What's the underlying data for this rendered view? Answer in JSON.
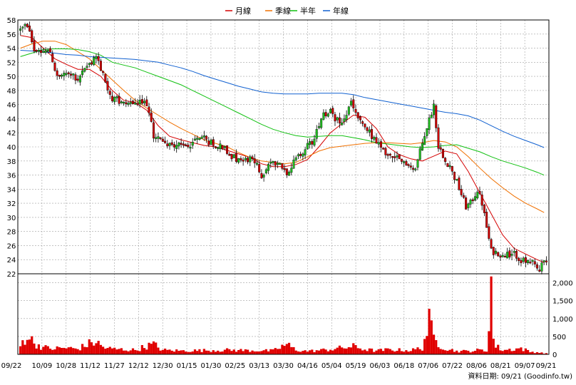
{
  "chart_data": {
    "type": "candlestick",
    "legend": [
      {
        "name": "月線",
        "color": "#d40000"
      },
      {
        "name": "季線",
        "color": "#f07000"
      },
      {
        "name": "半年",
        "color": "#10c010"
      },
      {
        "name": "年線",
        "color": "#1060d0"
      }
    ],
    "x_ticks": [
      "09/22",
      "10/09",
      "10/28",
      "11/12",
      "11/27",
      "12/12",
      "12/30",
      "01/15",
      "01/30",
      "02/25",
      "03/13",
      "03/30",
      "04/16",
      "05/04",
      "05/19",
      "06/03",
      "06/18",
      "07/06",
      "07/22",
      "08/06",
      "08/21",
      "09/07",
      "09/21"
    ],
    "price_axis": {
      "ylim": [
        22,
        58
      ],
      "ticks": [
        22,
        24,
        26,
        28,
        30,
        32,
        34,
        36,
        38,
        40,
        42,
        44,
        46,
        48,
        50,
        52,
        54,
        56,
        58
      ]
    },
    "volume_axis": {
      "ylim": [
        0,
        2250
      ],
      "tick_labels": [
        "0",
        "500",
        "1,000",
        "1,500",
        "2,000"
      ],
      "tick_values": [
        0,
        500,
        1000,
        1500,
        2000
      ]
    },
    "price_anchors": [
      [
        0,
        56.6
      ],
      [
        3,
        57.3
      ],
      [
        6,
        53.7
      ],
      [
        10,
        53.6
      ],
      [
        13,
        53.5
      ],
      [
        16,
        49.8
      ],
      [
        20,
        50.1
      ],
      [
        25,
        49.8
      ],
      [
        30,
        51.5
      ],
      [
        33,
        53.0
      ],
      [
        35,
        51.0
      ],
      [
        40,
        46.7
      ],
      [
        45,
        46.1
      ],
      [
        50,
        46.2
      ],
      [
        55,
        46.2
      ],
      [
        58,
        41.6
      ],
      [
        65,
        40.4
      ],
      [
        72,
        40.2
      ],
      [
        78,
        41.0
      ],
      [
        85,
        40.5
      ],
      [
        90,
        39.3
      ],
      [
        95,
        37.9
      ],
      [
        100,
        38.3
      ],
      [
        105,
        36.0
      ],
      [
        108,
        37.6
      ],
      [
        112,
        37.6
      ],
      [
        116,
        36.5
      ],
      [
        120,
        38.2
      ],
      [
        124,
        39.9
      ],
      [
        128,
        41.0
      ],
      [
        131,
        44.3
      ],
      [
        135,
        44.9
      ],
      [
        140,
        43.0
      ],
      [
        144,
        46.3
      ],
      [
        148,
        43.4
      ],
      [
        152,
        42.0
      ],
      [
        156,
        40.2
      ],
      [
        160,
        38.9
      ],
      [
        164,
        38.1
      ],
      [
        168,
        37.8
      ],
      [
        172,
        36.9
      ],
      [
        176,
        41.7
      ],
      [
        180,
        46.0
      ],
      [
        182,
        40.1
      ],
      [
        186,
        37.7
      ],
      [
        190,
        35.0
      ],
      [
        194,
        31.5
      ],
      [
        196,
        32.0
      ],
      [
        199,
        33.9
      ],
      [
        201,
        32.0
      ],
      [
        205,
        25.2
      ],
      [
        208,
        25.0
      ],
      [
        212,
        24.7
      ],
      [
        215,
        25.0
      ],
      [
        218,
        23.9
      ],
      [
        221,
        23.6
      ],
      [
        225,
        22.7
      ],
      [
        228,
        23.8
      ]
    ],
    "volume_anchors": [
      [
        0,
        240
      ],
      [
        3,
        550
      ],
      [
        6,
        310
      ],
      [
        10,
        200
      ],
      [
        13,
        160
      ],
      [
        20,
        180
      ],
      [
        25,
        150
      ],
      [
        30,
        300
      ],
      [
        33,
        350
      ],
      [
        36,
        200
      ],
      [
        40,
        150
      ],
      [
        50,
        120
      ],
      [
        55,
        230
      ],
      [
        58,
        280
      ],
      [
        62,
        120
      ],
      [
        70,
        100
      ],
      [
        80,
        110
      ],
      [
        90,
        120
      ],
      [
        100,
        110
      ],
      [
        110,
        100
      ],
      [
        116,
        280
      ],
      [
        120,
        120
      ],
      [
        125,
        90
      ],
      [
        130,
        110
      ],
      [
        135,
        140
      ],
      [
        140,
        180
      ],
      [
        145,
        220
      ],
      [
        150,
        140
      ],
      [
        155,
        100
      ],
      [
        160,
        130
      ],
      [
        165,
        120
      ],
      [
        170,
        110
      ],
      [
        175,
        180
      ],
      [
        178,
        900
      ],
      [
        180,
        450
      ],
      [
        183,
        250
      ],
      [
        186,
        150
      ],
      [
        190,
        90
      ],
      [
        195,
        90
      ],
      [
        200,
        120
      ],
      [
        203,
        90
      ],
      [
        205,
        2100
      ],
      [
        206,
        400
      ],
      [
        207,
        230
      ],
      [
        210,
        120
      ],
      [
        214,
        140
      ],
      [
        218,
        170
      ],
      [
        222,
        70
      ],
      [
        225,
        60
      ],
      [
        228,
        30
      ]
    ],
    "ma_lines": {
      "月線": [
        [
          0,
          55.8
        ],
        [
          5,
          55.5
        ],
        [
          10,
          54.0
        ],
        [
          15,
          52.5
        ],
        [
          20,
          51.7
        ],
        [
          25,
          51.0
        ],
        [
          30,
          51.0
        ],
        [
          35,
          50.0
        ],
        [
          40,
          48.0
        ],
        [
          45,
          46.6
        ],
        [
          50,
          46.3
        ],
        [
          55,
          45.2
        ],
        [
          60,
          43.0
        ],
        [
          65,
          41.5
        ],
        [
          70,
          41.0
        ],
        [
          75,
          40.6
        ],
        [
          80,
          40.2
        ],
        [
          85,
          40.0
        ],
        [
          90,
          39.5
        ],
        [
          95,
          39.0
        ],
        [
          100,
          38.5
        ],
        [
          105,
          37.6
        ],
        [
          110,
          37.2
        ],
        [
          115,
          37.2
        ],
        [
          120,
          37.5
        ],
        [
          125,
          38.2
        ],
        [
          130,
          40.0
        ],
        [
          135,
          42.0
        ],
        [
          140,
          43.3
        ],
        [
          145,
          44.5
        ],
        [
          150,
          44.2
        ],
        [
          155,
          42.6
        ],
        [
          160,
          40.0
        ],
        [
          165,
          38.9
        ],
        [
          170,
          38.3
        ],
        [
          175,
          38.0
        ],
        [
          180,
          38.7
        ],
        [
          185,
          39.4
        ],
        [
          190,
          39.0
        ],
        [
          195,
          36.5
        ],
        [
          200,
          33.5
        ],
        [
          205,
          30.5
        ],
        [
          210,
          27.5
        ],
        [
          215,
          25.6
        ],
        [
          220,
          24.8
        ],
        [
          225,
          24.0
        ],
        [
          228,
          23.6
        ]
      ],
      "季線": [
        [
          0,
          54.0
        ],
        [
          5,
          54.6
        ],
        [
          10,
          55.0
        ],
        [
          15,
          55.0
        ],
        [
          20,
          54.5
        ],
        [
          25,
          53.5
        ],
        [
          30,
          52.5
        ],
        [
          35,
          51.0
        ],
        [
          40,
          49.5
        ],
        [
          45,
          48.0
        ],
        [
          50,
          46.6
        ],
        [
          55,
          45.5
        ],
        [
          60,
          44.5
        ],
        [
          65,
          43.5
        ],
        [
          70,
          42.6
        ],
        [
          75,
          41.8
        ],
        [
          80,
          41.0
        ],
        [
          85,
          40.5
        ],
        [
          90,
          40.0
        ],
        [
          95,
          39.2
        ],
        [
          100,
          38.5
        ],
        [
          105,
          38.0
        ],
        [
          110,
          37.8
        ],
        [
          115,
          37.6
        ],
        [
          120,
          37.8
        ],
        [
          125,
          38.6
        ],
        [
          130,
          39.4
        ],
        [
          135,
          39.9
        ],
        [
          140,
          40.1
        ],
        [
          145,
          40.3
        ],
        [
          150,
          40.5
        ],
        [
          155,
          40.6
        ],
        [
          160,
          40.6
        ],
        [
          165,
          40.5
        ],
        [
          170,
          40.4
        ],
        [
          175,
          40.6
        ],
        [
          180,
          40.9
        ],
        [
          185,
          40.7
        ],
        [
          190,
          40.0
        ],
        [
          195,
          38.6
        ],
        [
          200,
          37.0
        ],
        [
          205,
          35.5
        ],
        [
          210,
          34.2
        ],
        [
          215,
          33.0
        ],
        [
          220,
          32.0
        ],
        [
          225,
          31.2
        ],
        [
          228,
          30.7
        ]
      ],
      "半年": [
        [
          0,
          52.8
        ],
        [
          5,
          53.3
        ],
        [
          10,
          53.8
        ],
        [
          15,
          53.9
        ],
        [
          20,
          53.9
        ],
        [
          25,
          53.8
        ],
        [
          30,
          53.5
        ],
        [
          35,
          53.0
        ],
        [
          40,
          52.0
        ],
        [
          45,
          51.6
        ],
        [
          50,
          51.2
        ],
        [
          55,
          50.6
        ],
        [
          60,
          50.0
        ],
        [
          65,
          49.4
        ],
        [
          70,
          48.8
        ],
        [
          75,
          48.0
        ],
        [
          80,
          47.2
        ],
        [
          85,
          46.4
        ],
        [
          90,
          45.6
        ],
        [
          95,
          44.8
        ],
        [
          100,
          44.0
        ],
        [
          105,
          43.2
        ],
        [
          110,
          42.5
        ],
        [
          115,
          42.0
        ],
        [
          120,
          41.6
        ],
        [
          125,
          41.4
        ],
        [
          130,
          41.5
        ],
        [
          135,
          41.6
        ],
        [
          140,
          41.6
        ],
        [
          145,
          41.3
        ],
        [
          150,
          41.0
        ],
        [
          155,
          40.6
        ],
        [
          160,
          40.4
        ],
        [
          165,
          40.2
        ],
        [
          170,
          40.0
        ],
        [
          175,
          39.9
        ],
        [
          180,
          40.0
        ],
        [
          185,
          40.2
        ],
        [
          190,
          40.3
        ],
        [
          195,
          39.8
        ],
        [
          200,
          39.3
        ],
        [
          205,
          38.6
        ],
        [
          210,
          38.0
        ],
        [
          215,
          37.5
        ],
        [
          220,
          37.0
        ],
        [
          225,
          36.4
        ],
        [
          228,
          36.0
        ]
      ],
      "年線": [
        [
          0,
          53.7
        ],
        [
          5,
          53.6
        ],
        [
          10,
          53.5
        ],
        [
          15,
          53.3
        ],
        [
          20,
          53.1
        ],
        [
          25,
          53.0
        ],
        [
          30,
          52.8
        ],
        [
          35,
          52.7
        ],
        [
          40,
          52.6
        ],
        [
          45,
          52.5
        ],
        [
          50,
          52.4
        ],
        [
          55,
          52.2
        ],
        [
          60,
          52.0
        ],
        [
          65,
          51.6
        ],
        [
          70,
          51.2
        ],
        [
          75,
          50.7
        ],
        [
          80,
          50.1
        ],
        [
          85,
          49.6
        ],
        [
          90,
          49.1
        ],
        [
          95,
          48.6
        ],
        [
          100,
          48.2
        ],
        [
          105,
          47.8
        ],
        [
          110,
          47.6
        ],
        [
          115,
          47.5
        ],
        [
          120,
          47.5
        ],
        [
          125,
          47.5
        ],
        [
          130,
          47.6
        ],
        [
          135,
          47.6
        ],
        [
          140,
          47.6
        ],
        [
          145,
          47.4
        ],
        [
          150,
          47.0
        ],
        [
          155,
          46.7
        ],
        [
          160,
          46.4
        ],
        [
          165,
          46.1
        ],
        [
          170,
          45.8
        ],
        [
          175,
          45.5
        ],
        [
          180,
          45.2
        ],
        [
          185,
          44.9
        ],
        [
          190,
          44.7
        ],
        [
          195,
          44.4
        ],
        [
          200,
          43.8
        ],
        [
          205,
          43.0
        ],
        [
          210,
          42.2
        ],
        [
          215,
          41.5
        ],
        [
          220,
          40.9
        ],
        [
          225,
          40.3
        ],
        [
          228,
          39.9
        ]
      ]
    }
  },
  "footer": {
    "text": "資料日期: 09/21  (Goodinfo.tw)"
  },
  "colors": {
    "up": "#20c020",
    "down": "#d00000",
    "volume": "#e00000",
    "grid": "#a0a0a0"
  }
}
